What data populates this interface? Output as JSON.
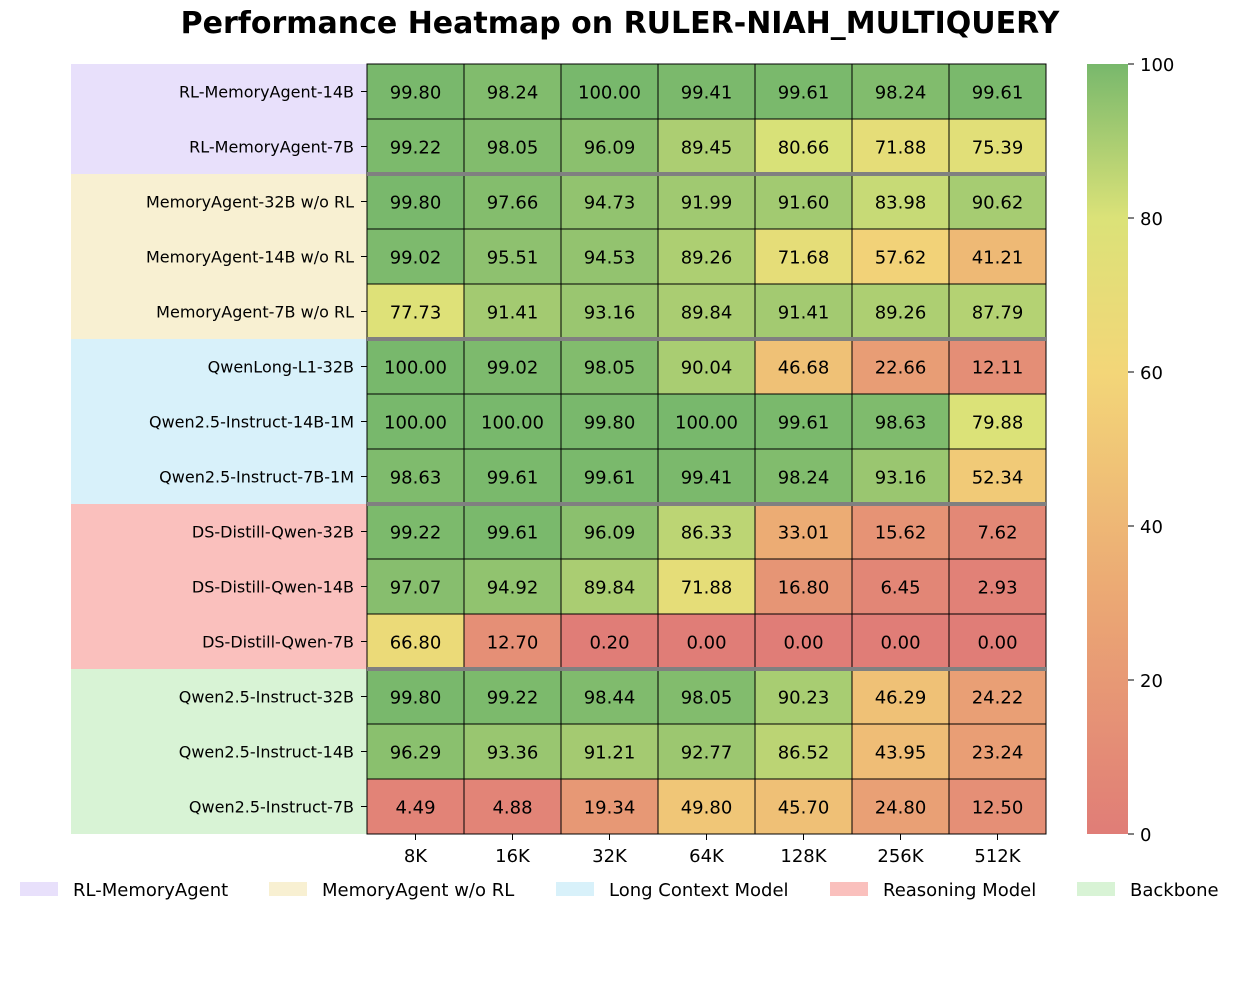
{
  "chart_data": {
    "type": "heatmap",
    "title": "Performance Heatmap on RULER-NIAH_MULTIQUERY",
    "columns": [
      "8K",
      "16K",
      "32K",
      "64K",
      "128K",
      "256K",
      "512K"
    ],
    "rows": [
      {
        "label": "RL-MemoryAgent-14B",
        "group": "RL-MemoryAgent",
        "values": [
          99.8,
          98.24,
          100.0,
          99.41,
          99.61,
          98.24,
          99.61
        ]
      },
      {
        "label": "RL-MemoryAgent-7B",
        "group": "RL-MemoryAgent",
        "values": [
          99.22,
          98.05,
          96.09,
          89.45,
          80.66,
          71.88,
          75.39
        ]
      },
      {
        "label": "MemoryAgent-32B w/o RL",
        "group": "MemoryAgent w/o RL",
        "values": [
          99.8,
          97.66,
          94.73,
          91.99,
          91.6,
          83.98,
          90.62
        ]
      },
      {
        "label": "MemoryAgent-14B w/o RL",
        "group": "MemoryAgent w/o RL",
        "values": [
          99.02,
          95.51,
          94.53,
          89.26,
          71.68,
          57.62,
          41.21
        ]
      },
      {
        "label": "MemoryAgent-7B w/o RL",
        "group": "MemoryAgent w/o RL",
        "values": [
          77.73,
          91.41,
          93.16,
          89.84,
          91.41,
          89.26,
          87.79
        ]
      },
      {
        "label": "QwenLong-L1-32B",
        "group": "Long Context Model",
        "values": [
          100.0,
          99.02,
          98.05,
          90.04,
          46.68,
          22.66,
          12.11
        ]
      },
      {
        "label": "Qwen2.5-Instruct-14B-1M",
        "group": "Long Context Model",
        "values": [
          100.0,
          100.0,
          99.8,
          100.0,
          99.61,
          98.63,
          79.88
        ]
      },
      {
        "label": "Qwen2.5-Instruct-7B-1M",
        "group": "Long Context Model",
        "values": [
          98.63,
          99.61,
          99.61,
          99.41,
          98.24,
          93.16,
          52.34
        ]
      },
      {
        "label": "DS-Distill-Qwen-32B",
        "group": "Reasoning Model",
        "values": [
          99.22,
          99.61,
          96.09,
          86.33,
          33.01,
          15.62,
          7.62
        ]
      },
      {
        "label": "DS-Distill-Qwen-14B",
        "group": "Reasoning Model",
        "values": [
          97.07,
          94.92,
          89.84,
          71.88,
          16.8,
          6.45,
          2.93
        ]
      },
      {
        "label": "DS-Distill-Qwen-7B",
        "group": "Reasoning Model",
        "values": [
          66.8,
          12.7,
          0.2,
          0.0,
          0.0,
          0.0,
          0.0
        ]
      },
      {
        "label": "Qwen2.5-Instruct-32B",
        "group": "Backbone",
        "values": [
          99.8,
          99.22,
          98.44,
          98.05,
          90.23,
          46.29,
          24.22
        ]
      },
      {
        "label": "Qwen2.5-Instruct-14B",
        "group": "Backbone",
        "values": [
          96.29,
          93.36,
          91.21,
          92.77,
          86.52,
          43.95,
          23.24
        ]
      },
      {
        "label": "Qwen2.5-Instruct-7B",
        "group": "Backbone",
        "values": [
          4.49,
          4.88,
          19.34,
          49.8,
          45.7,
          24.8,
          12.5
        ]
      }
    ],
    "groups": [
      {
        "name": "RL-MemoryAgent",
        "color": "#e8e0fb"
      },
      {
        "name": "MemoryAgent w/o RL",
        "color": "#f8f0d2"
      },
      {
        "name": "Long Context Model",
        "color": "#d8f1fa"
      },
      {
        "name": "Reasoning Model",
        "color": "#fac0bd"
      },
      {
        "name": "Backbone",
        "color": "#d8f3d5"
      }
    ],
    "colorbar": {
      "min": 0,
      "max": 100,
      "ticks": [
        "0",
        "20",
        "40",
        "60",
        "80",
        "100"
      ]
    },
    "colormap": [
      {
        "stop": 0,
        "color": "#e07d77"
      },
      {
        "stop": 30,
        "color": "#eba774"
      },
      {
        "stop": 60,
        "color": "#f3d678"
      },
      {
        "stop": 80,
        "color": "#dbe278"
      },
      {
        "stop": 100,
        "color": "#78b86c"
      }
    ]
  }
}
